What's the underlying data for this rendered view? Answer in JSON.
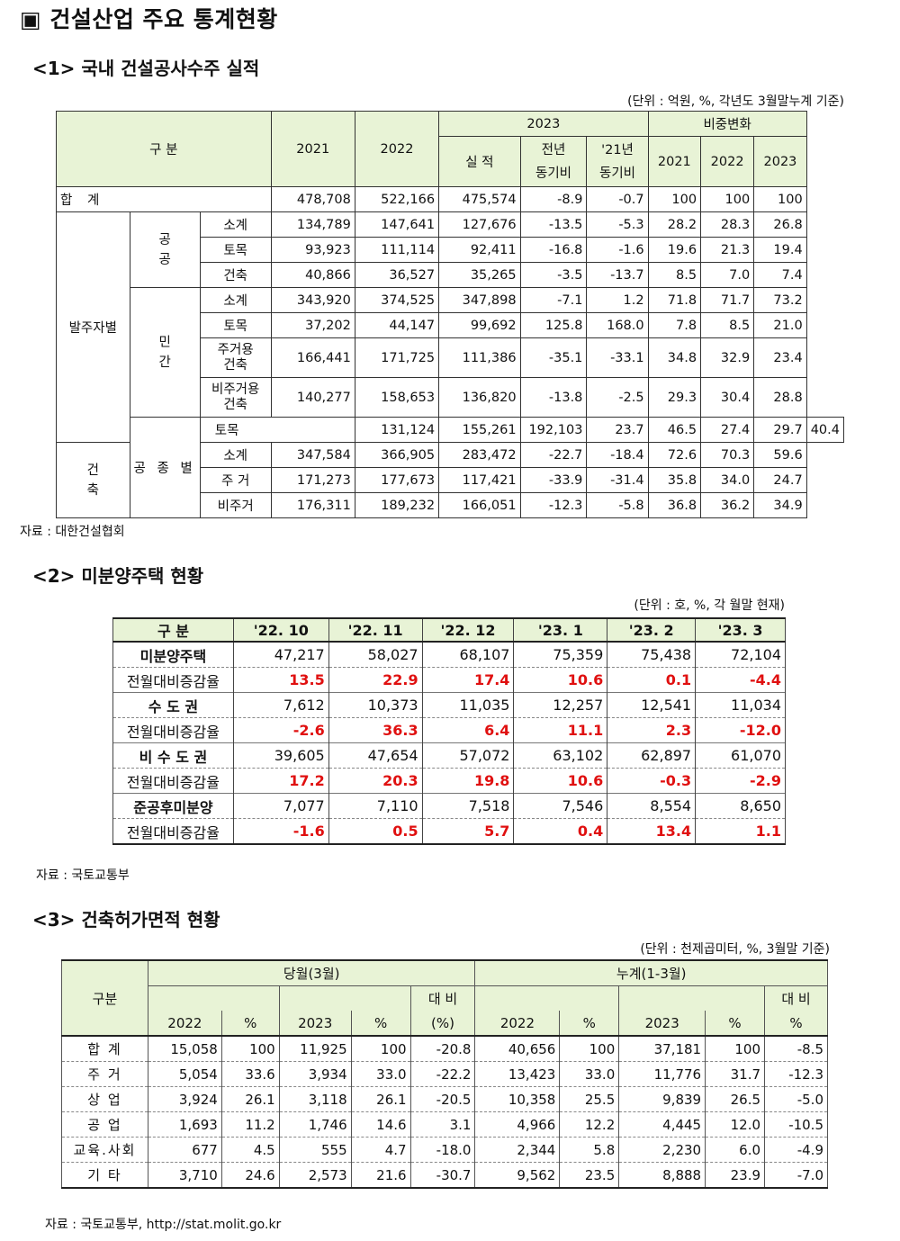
{
  "title": "▣ 건설산업 주요 통계현황",
  "section1": {
    "heading": "<1> 국내 건설공사수주 실적",
    "unit": "(단위 : 억원, %, 각년도 3월말누계 기준)",
    "headers": {
      "gubun": "구 분",
      "y2021": "2021",
      "y2022": "2022",
      "y2023": "2023",
      "share": "비중변화",
      "actual": "실 적",
      "yoy": "전년\n동기비",
      "vs21": "'21년\n동기비",
      "s2021": "2021",
      "s2022": "2022",
      "s2023": "2023"
    },
    "labels": {
      "total": "합 계",
      "by_client": "발주자별",
      "public": "공\n공",
      "private": "민\n간",
      "by_type": "공 종 별",
      "building": "건\n축",
      "subtotal": "소계",
      "civil": "토목",
      "arch": "건축",
      "residential": "주거용\n건축",
      "nonresidential": "비주거용\n건축",
      "resid": "주 거",
      "nonresid": "비주거"
    },
    "rows": [
      [
        "478,708",
        "522,166",
        "475,574",
        "-8.9",
        "-0.7",
        "100",
        "100",
        "100"
      ],
      [
        "134,789",
        "147,641",
        "127,676",
        "-13.5",
        "-5.3",
        "28.2",
        "28.3",
        "26.8"
      ],
      [
        "93,923",
        "111,114",
        "92,411",
        "-16.8",
        "-1.6",
        "19.6",
        "21.3",
        "19.4"
      ],
      [
        "40,866",
        "36,527",
        "35,265",
        "-3.5",
        "-13.7",
        "8.5",
        "7.0",
        "7.4"
      ],
      [
        "343,920",
        "374,525",
        "347,898",
        "-7.1",
        "1.2",
        "71.8",
        "71.7",
        "73.2"
      ],
      [
        "37,202",
        "44,147",
        "99,692",
        "125.8",
        "168.0",
        "7.8",
        "8.5",
        "21.0"
      ],
      [
        "166,441",
        "171,725",
        "111,386",
        "-35.1",
        "-33.1",
        "34.8",
        "32.9",
        "23.4"
      ],
      [
        "140,277",
        "158,653",
        "136,820",
        "-13.8",
        "-2.5",
        "29.3",
        "30.4",
        "28.8"
      ],
      [
        "131,124",
        "155,261",
        "192,103",
        "23.7",
        "46.5",
        "27.4",
        "29.7",
        "40.4"
      ],
      [
        "347,584",
        "366,905",
        "283,472",
        "-22.7",
        "-18.4",
        "72.6",
        "70.3",
        "59.6"
      ],
      [
        "171,273",
        "177,673",
        "117,421",
        "-33.9",
        "-31.4",
        "35.8",
        "34.0",
        "24.7"
      ],
      [
        "176,311",
        "189,232",
        "166,051",
        "-12.3",
        "-5.8",
        "36.8",
        "36.2",
        "34.9"
      ]
    ],
    "source": "자료 : 대한건설협회"
  },
  "section2": {
    "heading": "<2> 미분양주택 현황",
    "unit": "(단위 : 호, %, 각 월말 현재)",
    "headers": [
      "구 분",
      "'22. 10",
      "'22. 11",
      "'22. 12",
      "'23. 1",
      "'23. 2",
      "'23. 3"
    ],
    "rows": [
      {
        "label": "미분양주택",
        "values": [
          "47,217",
          "58,027",
          "68,107",
          "75,359",
          "75,438",
          "72,104"
        ]
      },
      {
        "label": "전월대비증감율",
        "values": [
          "13.5",
          "22.9",
          "17.4",
          "10.6",
          "0.1",
          "-4.4"
        ]
      },
      {
        "label": "수 도 권",
        "values": [
          "7,612",
          "10,373",
          "11,035",
          "12,257",
          "12,541",
          "11,034"
        ]
      },
      {
        "label": "전월대비증감율",
        "values": [
          "-2.6",
          "36.3",
          "6.4",
          "11.1",
          "2.3",
          "-12.0"
        ]
      },
      {
        "label": "비 수 도 권",
        "values": [
          "39,605",
          "47,654",
          "57,072",
          "63,102",
          "62,897",
          "61,070"
        ]
      },
      {
        "label": "전월대비증감율",
        "values": [
          "17.2",
          "20.3",
          "19.8",
          "10.6",
          "-0.3",
          "-2.9"
        ]
      },
      {
        "label": "준공후미분양",
        "values": [
          "7,077",
          "7,110",
          "7,518",
          "7,546",
          "8,554",
          "8,650"
        ]
      },
      {
        "label": "전월대비증감율",
        "values": [
          "-1.6",
          "0.5",
          "5.7",
          "0.4",
          "13.4",
          "1.1"
        ]
      }
    ],
    "highlight_color": "#e01010",
    "source": "자료 : 국토교통부"
  },
  "section3": {
    "heading": "<3> 건축허가면적 현황",
    "unit": "(단위 : 천제곱미터, %, 3월말 기준)",
    "headers": {
      "gubun": "구분",
      "month": "당월(3월)",
      "cum": "누계(1-3월)",
      "ratio_a": "대 비",
      "ratio_a2": "(%)",
      "ratio_b": "대 비",
      "ratio_b2": "%",
      "y2022": "2022",
      "pct": "%",
      "y2023": "2023"
    },
    "rows": [
      {
        "label": "합 계",
        "values": [
          "15,058",
          "100",
          "11,925",
          "100",
          "-20.8",
          "40,656",
          "100",
          "37,181",
          "100",
          "-8.5"
        ]
      },
      {
        "label": "주 거",
        "values": [
          "5,054",
          "33.6",
          "3,934",
          "33.0",
          "-22.2",
          "13,423",
          "33.0",
          "11,776",
          "31.7",
          "-12.3"
        ]
      },
      {
        "label": "상 업",
        "values": [
          "3,924",
          "26.1",
          "3,118",
          "26.1",
          "-20.5",
          "10,358",
          "25.5",
          "9,839",
          "26.5",
          "-5.0"
        ]
      },
      {
        "label": "공 업",
        "values": [
          "1,693",
          "11.2",
          "1,746",
          "14.6",
          "3.1",
          "4,966",
          "12.2",
          "4,445",
          "12.0",
          "-10.5"
        ]
      },
      {
        "label": "교육.사회",
        "values": [
          "677",
          "4.5",
          "555",
          "4.7",
          "-18.0",
          "2,344",
          "5.8",
          "2,230",
          "6.0",
          "-4.9"
        ]
      },
      {
        "label": "기 타",
        "values": [
          "3,710",
          "24.6",
          "2,573",
          "21.6",
          "-30.7",
          "9,562",
          "23.5",
          "8,888",
          "23.9",
          "-7.0"
        ]
      }
    ],
    "source": "자료 : 국토교통부, http://stat.molit.go.kr"
  }
}
